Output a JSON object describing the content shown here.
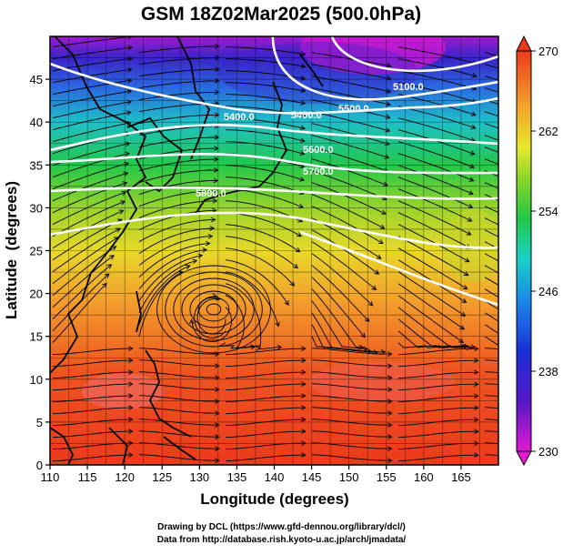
{
  "title": "GSM 18Z02Mar2025 (500.0hPa)",
  "xlabel": "Longitude (degrees)",
  "ylabel": "Latitude  (degrees)",
  "x_ticks": [
    "110",
    "115",
    "120",
    "125",
    "130",
    "135",
    "140",
    "145",
    "150",
    "155",
    "160",
    "165"
  ],
  "y_ticks": [
    "0",
    "5",
    "10",
    "15",
    "20",
    "25",
    "30",
    "35",
    "40",
    "45"
  ],
  "colorbar_ticks": [
    "270",
    "262",
    "254",
    "246",
    "238",
    "230"
  ],
  "contour_labels": [
    "5100.0",
    "5400.0",
    "5400.0",
    "5500.0",
    "5600.0",
    "5700.0",
    "5800.0"
  ],
  "credits": {
    "line1": "Drawing by DCL (https://www.gfd-dennou.org/library/dcl/)",
    "line2": "Data from http://database.rish.kyoto-u.ac.jp/arch/jmadata/"
  },
  "chart_data": {
    "type": "heatmap",
    "field": "temperature with geopotential height contours and wind streamlines",
    "xlim": [
      110,
      170
    ],
    "ylim": [
      0,
      50
    ],
    "colorbar_range": [
      230,
      270
    ],
    "colors": {
      "low": "#e21ad4",
      "mid_low": "#1a2fd8",
      "mid": "#22c84a",
      "mid_high": "#e8e82a",
      "high": "#ec3a1c"
    }
  }
}
